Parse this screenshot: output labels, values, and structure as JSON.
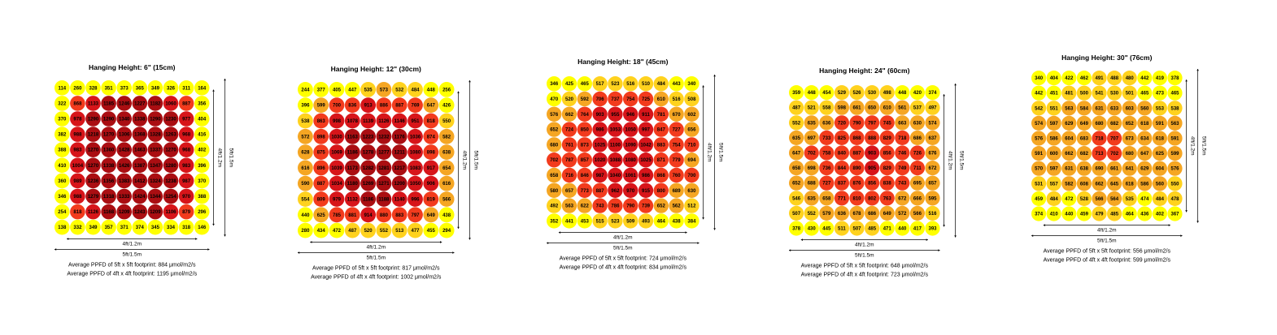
{
  "colors": {
    "low": "#ffff00",
    "mid_low": "#ffd21e",
    "mid": "#f5a623",
    "mid_high": "#f23b1d",
    "high": "#d7151a",
    "peak": "#aa0e12",
    "dims": "#000000"
  },
  "chart_data": [
    {
      "type": "heatmap",
      "title": "Hanging Height: 6\" (15cm)",
      "dim_inner": "4ft/1.2m",
      "dim_outer": "5ft/1.5m",
      "avg_5x5": "Average PPFD of 5ft x 5ft footprint: 884 μmol/m2/s",
      "avg_4x4": "Average PPFD of 4ft x 4ft footprint: 1195 μmol/m2/s",
      "grid": [
        [
          114,
          260,
          328,
          351,
          373,
          365,
          349,
          326,
          311,
          164
        ],
        [
          322,
          868,
          1133,
          1185,
          1246,
          1227,
          1182,
          1060,
          887,
          356
        ],
        [
          370,
          978,
          1290,
          1290,
          1340,
          1338,
          1290,
          1230,
          977,
          404
        ],
        [
          382,
          988,
          1218,
          1270,
          1306,
          1368,
          1328,
          1263,
          968,
          416
        ],
        [
          388,
          983,
          1270,
          1360,
          1428,
          1463,
          1337,
          1270,
          968,
          402
        ],
        [
          410,
          1004,
          1270,
          1338,
          1426,
          1387,
          1347,
          1280,
          983,
          396
        ],
        [
          360,
          989,
          1236,
          1356,
          1383,
          1412,
          1324,
          1238,
          987,
          370
        ],
        [
          346,
          988,
          1279,
          1318,
          1333,
          1424,
          1344,
          1254,
          970,
          388
        ],
        [
          254,
          818,
          1126,
          1168,
          1209,
          1243,
          1209,
          1106,
          879,
          296
        ],
        [
          138,
          332,
          349,
          357,
          371,
          374,
          345,
          334,
          318,
          146
        ]
      ]
    },
    {
      "type": "heatmap",
      "title": "Hanging Height: 12\" (30cm)",
      "dim_inner": "4ft/1.2m",
      "dim_outer": "5ft/1.5m",
      "avg_5x5": "Average PPFD of 5ft x 5ft footprint: 817 μmol/m2/s",
      "avg_4x4": "Average PPFD of 4ft x 4ft footprint: 1002 μmol/m2/s",
      "grid": [
        [
          244,
          377,
          405,
          447,
          535,
          573,
          532,
          484,
          448,
          256
        ],
        [
          396,
          599,
          700,
          836,
          913,
          886,
          887,
          769,
          647,
          426
        ],
        [
          538,
          863,
          998,
          1078,
          1139,
          1126,
          1146,
          951,
          818,
          550
        ],
        [
          572,
          898,
          1030,
          1163,
          1223,
          1232,
          1176,
          1036,
          874,
          582
        ],
        [
          628,
          875,
          1069,
          1186,
          1278,
          1277,
          1211,
          1080,
          898,
          638
        ],
        [
          616,
          896,
          1039,
          1173,
          1282,
          1281,
          1217,
          1083,
          917,
          654
        ],
        [
          590,
          887,
          1034,
          1180,
          1269,
          1271,
          1200,
          1050,
          906,
          616
        ],
        [
          554,
          809,
          979,
          1132,
          1186,
          1188,
          1140,
          996,
          819,
          566
        ],
        [
          440,
          625,
          785,
          881,
          914,
          880,
          883,
          797,
          649,
          438
        ],
        [
          280,
          434,
          472,
          487,
          520,
          552,
          513,
          477,
          455,
          294
        ]
      ]
    },
    {
      "type": "heatmap",
      "title": "Hanging Height: 18\" (45cm)",
      "dim_inner": "4ft/1.2m",
      "dim_outer": "5ft/1.5m",
      "avg_5x5": "Average PPFD of 5ft x 5ft footprint: 724 μmol/m2/s",
      "avg_4x4": "Average PPFD of 4ft x 4ft footprint: 834 μmol/m2/s",
      "grid": [
        [
          346,
          425,
          465,
          517,
          523,
          516,
          510,
          484,
          443,
          340
        ],
        [
          470,
          520,
          592,
          706,
          737,
          754,
          725,
          610,
          516,
          508
        ],
        [
          576,
          662,
          764,
          903,
          955,
          946,
          911,
          781,
          670,
          602
        ],
        [
          652,
          724,
          850,
          986,
          1053,
          1050,
          997,
          847,
          727,
          656
        ],
        [
          680,
          761,
          873,
          1025,
          1100,
          1090,
          1042,
          883,
          754,
          710
        ],
        [
          702,
          787,
          857,
          1020,
          1088,
          1080,
          1025,
          871,
          779,
          694
        ],
        [
          658,
          716,
          846,
          987,
          1040,
          1061,
          986,
          868,
          760,
          700
        ],
        [
          580,
          657,
          773,
          887,
          962,
          970,
          915,
          800,
          689,
          630
        ],
        [
          492,
          563,
          622,
          743,
          786,
          790,
          739,
          652,
          562,
          512
        ],
        [
          352,
          441,
          453,
          515,
          523,
          509,
          493,
          464,
          438,
          384
        ]
      ]
    },
    {
      "type": "heatmap",
      "title": "Hanging Height: 24\" (60cm)",
      "dim_inner": "4ft/1.2m",
      "dim_outer": "5ft/1.5m",
      "avg_5x5": "Average PPFD of 5ft x 5ft footprint: 648 μmol/m2/s",
      "avg_4x4": "Average PPFD of 4ft x 4ft footprint: 723 μmol/m2/s",
      "grid": [
        [
          359,
          448,
          454,
          529,
          526,
          530,
          498,
          448,
          420,
          374
        ],
        [
          487,
          521,
          558,
          598,
          661,
          650,
          610,
          561,
          537,
          497
        ],
        [
          552,
          635,
          636,
          720,
          790,
          797,
          745,
          663,
          630,
          574
        ],
        [
          635,
          697,
          733,
          825,
          868,
          888,
          829,
          718,
          686,
          637
        ],
        [
          647,
          702,
          758,
          840,
          887,
          903,
          856,
          746,
          726,
          676
        ],
        [
          658,
          698,
          736,
          844,
          890,
          905,
          829,
          749,
          711,
          672
        ],
        [
          652,
          688,
          727,
          837,
          876,
          856,
          838,
          743,
          695,
          657
        ],
        [
          546,
          635,
          658,
          771,
          810,
          802,
          763,
          672,
          666,
          595
        ],
        [
          507,
          552,
          579,
          636,
          678,
          686,
          649,
          572,
          566,
          516
        ],
        [
          378,
          430,
          445,
          511,
          507,
          485,
          471,
          440,
          417,
          393
        ]
      ]
    },
    {
      "type": "heatmap",
      "title": "Hanging Height: 30\" (76cm)",
      "dim_inner": "4ft/1.2m",
      "dim_outer": "5ft/1.5m",
      "avg_5x5": "Average PPFD of 5ft x 5ft footprint: 556 μmol/m2/s",
      "avg_4x4": "Average PPFD of 4ft x 4ft footprint: 599 μmol/m2/s",
      "grid": [
        [
          340,
          404,
          422,
          462,
          491,
          488,
          480,
          442,
          419,
          378
        ],
        [
          442,
          451,
          481,
          500,
          541,
          530,
          501,
          465,
          473,
          465
        ],
        [
          542,
          551,
          563,
          584,
          631,
          633,
          603,
          560,
          553,
          538
        ],
        [
          574,
          597,
          629,
          649,
          680,
          682,
          652,
          618,
          591,
          563
        ],
        [
          576,
          586,
          604,
          683,
          718,
          707,
          673,
          634,
          618,
          591
        ],
        [
          591,
          600,
          662,
          682,
          713,
          702,
          680,
          647,
          625,
          599
        ],
        [
          570,
          597,
          631,
          638,
          690,
          661,
          641,
          629,
          604,
          576
        ],
        [
          531,
          557,
          582,
          608,
          662,
          645,
          618,
          586,
          560,
          550
        ],
        [
          459,
          484,
          472,
          528,
          566,
          564,
          535,
          474,
          484,
          478
        ],
        [
          374,
          410,
          440,
          459,
          479,
          485,
          464,
          436,
          402,
          367
        ]
      ]
    }
  ]
}
